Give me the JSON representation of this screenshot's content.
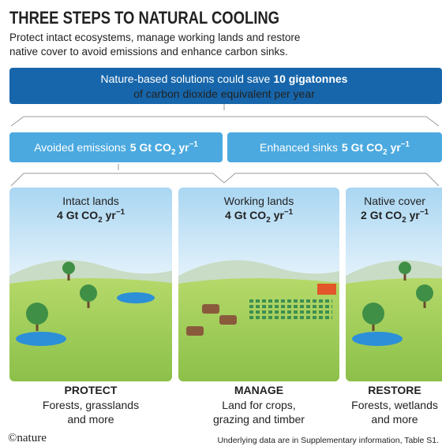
{
  "header": {
    "title": "THREE STEPS TO NATURAL COOLING",
    "subtitle": [
      "Protect intact ecosystems, manage working lands and restore",
      "native cover to avoid emissions and enhance carbon sinks."
    ]
  },
  "summary": {
    "lead": "Nature-based solutions could save",
    "amount": "10 gigatonnes",
    "rest": "of carbon dioxide equivalent per year"
  },
  "unit": {
    "main": "Gt CO",
    "sub": "2",
    "per": "yr",
    "sup": "−1"
  },
  "branches": [
    {
      "label": "Avoided emissions",
      "value": 5
    },
    {
      "label": "Enhanced sinks",
      "value": 5
    }
  ],
  "panels": [
    {
      "label": "Intact lands",
      "value": 4,
      "action": "PROTECT",
      "desc": [
        "Forests, grasslands",
        "and more"
      ]
    },
    {
      "label": "Working lands",
      "value": 4,
      "action": "MANAGE",
      "desc": [
        "Land for crops,",
        "grazing and timber"
      ]
    },
    {
      "label": "Native cover",
      "value": 2,
      "action": "RESTORE",
      "desc": [
        "Forests, wetlands",
        "and more"
      ]
    }
  ],
  "footer": {
    "logo": "©nature",
    "source": "Underlying data are in Supplementary information, Table S1."
  }
}
